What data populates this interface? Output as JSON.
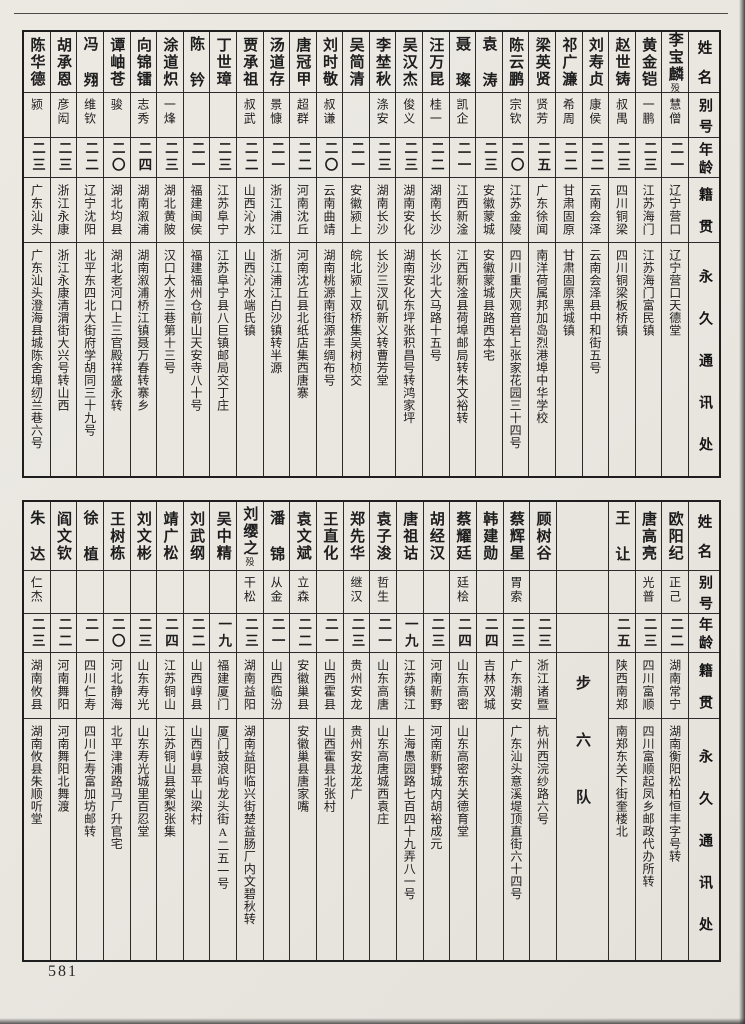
{
  "page": {
    "number": "581"
  },
  "row_headers": {
    "name": "姓名",
    "alias": "别号",
    "age": "年龄",
    "native": "籍贯",
    "address": "永久通讯处"
  },
  "tables": [
    {
      "columns": [
        {
          "name": "李宝麟",
          "note": "殁",
          "alias": "慧僧",
          "age": "二一",
          "native": "辽宁营口",
          "address": "辽宁营口天德堂"
        },
        {
          "name": "黄金铠",
          "alias": "一鹏",
          "age": "二三",
          "native": "江苏海门",
          "address": "江苏海门富民镇"
        },
        {
          "name": "赵世铸",
          "alias": "叔禺",
          "age": "二三",
          "native": "四川铜梁",
          "address": "四川铜梁板桥镇"
        },
        {
          "name": "刘寿贞",
          "alias": "康侯",
          "age": "二二",
          "native": "云南会泽",
          "address": "云南会泽县中和街五号"
        },
        {
          "name": "祁广濂",
          "alias": "希周",
          "age": "二二",
          "native": "甘肃固原",
          "address": "甘肃固原黑城镇"
        },
        {
          "name": "梁英贤",
          "alias": "贤芳",
          "age": "二五",
          "native": "广东徐闻",
          "address": "南洋荷属邦加岛烈港埠中华学校"
        },
        {
          "name": "陈云鹏",
          "alias": "宗钦",
          "age": "二〇",
          "native": "江苏金陵",
          "address": "四川重庆观音岩上张家花园三十四号"
        },
        {
          "name": "袁涛",
          "alias": "",
          "age": "二三",
          "native": "安徽蒙城",
          "address": "安徽蒙城县路西本宅"
        },
        {
          "name": "聂璨",
          "alias": "凯企",
          "age": "二一",
          "native": "江西新淦",
          "address": "江西新淦县荷埠邮局转朱文裕转"
        },
        {
          "name": "汪万昆",
          "alias": "桂一",
          "age": "二二",
          "native": "湖南长沙",
          "address": "长沙北大马路十五号"
        },
        {
          "name": "吴汉杰",
          "alias": "俊义",
          "age": "二三",
          "native": "湖南安化",
          "address": "湖南安化东坪张积昌号转鸿家坪"
        },
        {
          "name": "李埜秋",
          "alias": "涤安",
          "age": "二三",
          "native": "湖南长沙",
          "address": "长沙三汊矶新义转曹芳堂"
        },
        {
          "name": "吴简清",
          "alias": "",
          "age": "二一",
          "native": "安徽颍上",
          "address": "皖北颍上双桥集吴树桢交"
        },
        {
          "name": "刘时敬",
          "alias": "叔谦",
          "age": "二〇",
          "native": "云南曲靖",
          "address": "湖南桃源南街源丰绸布号"
        },
        {
          "name": "唐冠甲",
          "alias": "超群",
          "age": "二二",
          "native": "河南沈丘",
          "address": "河南沈丘县北纸店集西唐寨"
        },
        {
          "name": "汤道存",
          "alias": "景慷",
          "age": "二一",
          "native": "浙江浦江",
          "address": "浙江浦江白沙镇转半源"
        },
        {
          "name": "贾承祖",
          "alias": "叔武",
          "age": "二二",
          "native": "山西沁水",
          "address": "山西沁水端氏镇"
        },
        {
          "name": "丁世璋",
          "alias": "",
          "age": "二三",
          "native": "江苏阜宁",
          "address": "江苏阜宁县八巨镇邮局交丁庄"
        },
        {
          "name": "陈钤",
          "alias": "",
          "age": "二一",
          "native": "福建闽侯",
          "address": "福建福州仓前山天安寺八十号"
        },
        {
          "name": "涂道炽",
          "alias": "一烽",
          "age": "二三",
          "native": "湖北黄陂",
          "address": "汉口大水三巷第十三号"
        },
        {
          "name": "向锦镭",
          "alias": "志秀",
          "age": "二四",
          "native": "湖南溆浦",
          "address": "湖南溆浦桥江镇聂万春转寨乡"
        },
        {
          "name": "谭岫苍",
          "alias": "骏",
          "age": "二〇",
          "native": "湖北均县",
          "address": "湖北老河口上三官殿祥盛永转"
        },
        {
          "name": "冯翙",
          "alias": "维钦",
          "age": "二二",
          "native": "辽宁沈阳",
          "address": "北平东四北大街府学胡同三十九号"
        },
        {
          "name": "胡承恩",
          "alias": "彦闳",
          "age": "二三",
          "native": "浙江永康",
          "address": "浙江永康清渭街大兴号转山西"
        },
        {
          "name": "陈华德",
          "alias": "颍",
          "age": "二三",
          "native": "广东汕头",
          "address": "广东汕头澄海县城陈舍埠纫兰巷六号"
        }
      ]
    },
    {
      "columns": [
        {
          "name": "欧阳纪",
          "alias": "正己",
          "age": "二二",
          "native": "湖南常宁",
          "address": "湖南衡阳松柏恒丰字号转"
        },
        {
          "name": "唐高亮",
          "alias": "光普",
          "age": "二三",
          "native": "四川富顺",
          "address": "四川富顺起凤乡邮政代办所转"
        },
        {
          "name": "王让",
          "alias": "",
          "age": "二五",
          "native": "陕西南郑",
          "address": "南郑东关下街奎楼北"
        },
        {
          "divider": true,
          "label": "步六队"
        },
        {
          "name": "顾树谷",
          "alias": "",
          "age": "二三",
          "native": "浙江诸暨",
          "address": "杭州西浣纱路六号"
        },
        {
          "name": "蔡辉星",
          "alias": "胃索",
          "age": "二三",
          "native": "广东潮安",
          "address": "广东汕头意溪堤顶直街六十四号"
        },
        {
          "name": "韩建勋",
          "alias": "",
          "age": "二四",
          "native": "吉林双城",
          "address": ""
        },
        {
          "name": "蔡耀廷",
          "alias": "廷桧",
          "age": "二四",
          "native": "山东高密",
          "address": "山东高密东关德育堂"
        },
        {
          "name": "胡经汉",
          "alias": "",
          "age": "二三",
          "native": "河南新野",
          "address": "河南新野城内胡裕成元"
        },
        {
          "name": "唐祖诂",
          "alias": "",
          "age": "一九",
          "native": "江苏镇江",
          "address": "上海愚园路七百四十九弄八一号"
        },
        {
          "name": "袁子浚",
          "alias": "哲生",
          "age": "二一",
          "native": "山东高唐",
          "address": "山东高唐城西袁庄"
        },
        {
          "name": "郑先华",
          "alias": "继汉",
          "age": "二三",
          "native": "贵州安龙",
          "address": "贵州安龙龙广"
        },
        {
          "name": "王直化",
          "alias": "",
          "age": "二一",
          "native": "山西霍县",
          "address": "山西霍县北张村"
        },
        {
          "name": "袁文斌",
          "alias": "立森",
          "age": "二二",
          "native": "安徽巢县",
          "address": "安徽巢县唐家嘴"
        },
        {
          "name": "潘锦",
          "alias": "从金",
          "age": "二一",
          "native": "山西临汾",
          "address": ""
        },
        {
          "name": "刘缨之",
          "note": "殁",
          "alias": "干松",
          "age": "二三",
          "native": "湖南益阳",
          "address": "湖南益阳临兴街楚益肠厂内文碧秋转"
        },
        {
          "name": "吴中精",
          "alias": "",
          "age": "一九",
          "native": "福建厦门",
          "address": "厦门鼓浪屿龙头街A二五一号"
        },
        {
          "name": "刘武纲",
          "alias": "",
          "age": "二二",
          "native": "山西崞县",
          "address": "山西崞县平山梁村"
        },
        {
          "name": "靖广松",
          "alias": "",
          "age": "二四",
          "native": "江苏铜山",
          "address": "江苏铜山县棠梨张集"
        },
        {
          "name": "刘文彬",
          "alias": "",
          "age": "二三",
          "native": "山东寿光",
          "address": "山东寿光城里百忍堂"
        },
        {
          "name": "王树栋",
          "alias": "",
          "age": "二〇",
          "native": "河北静海",
          "address": "北平津浦路马厂升官宅"
        },
        {
          "name": "徐植",
          "alias": "",
          "age": "二一",
          "native": "四川仁寿",
          "address": "四川仁寿富加坊邮转"
        },
        {
          "name": "阎文钦",
          "alias": "",
          "age": "二二",
          "native": "河南舞阳",
          "address": "河南舞阳北舞渡"
        },
        {
          "name": "朱达",
          "alias": "仁杰",
          "age": "二三",
          "native": "湖南攸县",
          "address": "湖南攸县朱顺听堂"
        }
      ]
    }
  ]
}
